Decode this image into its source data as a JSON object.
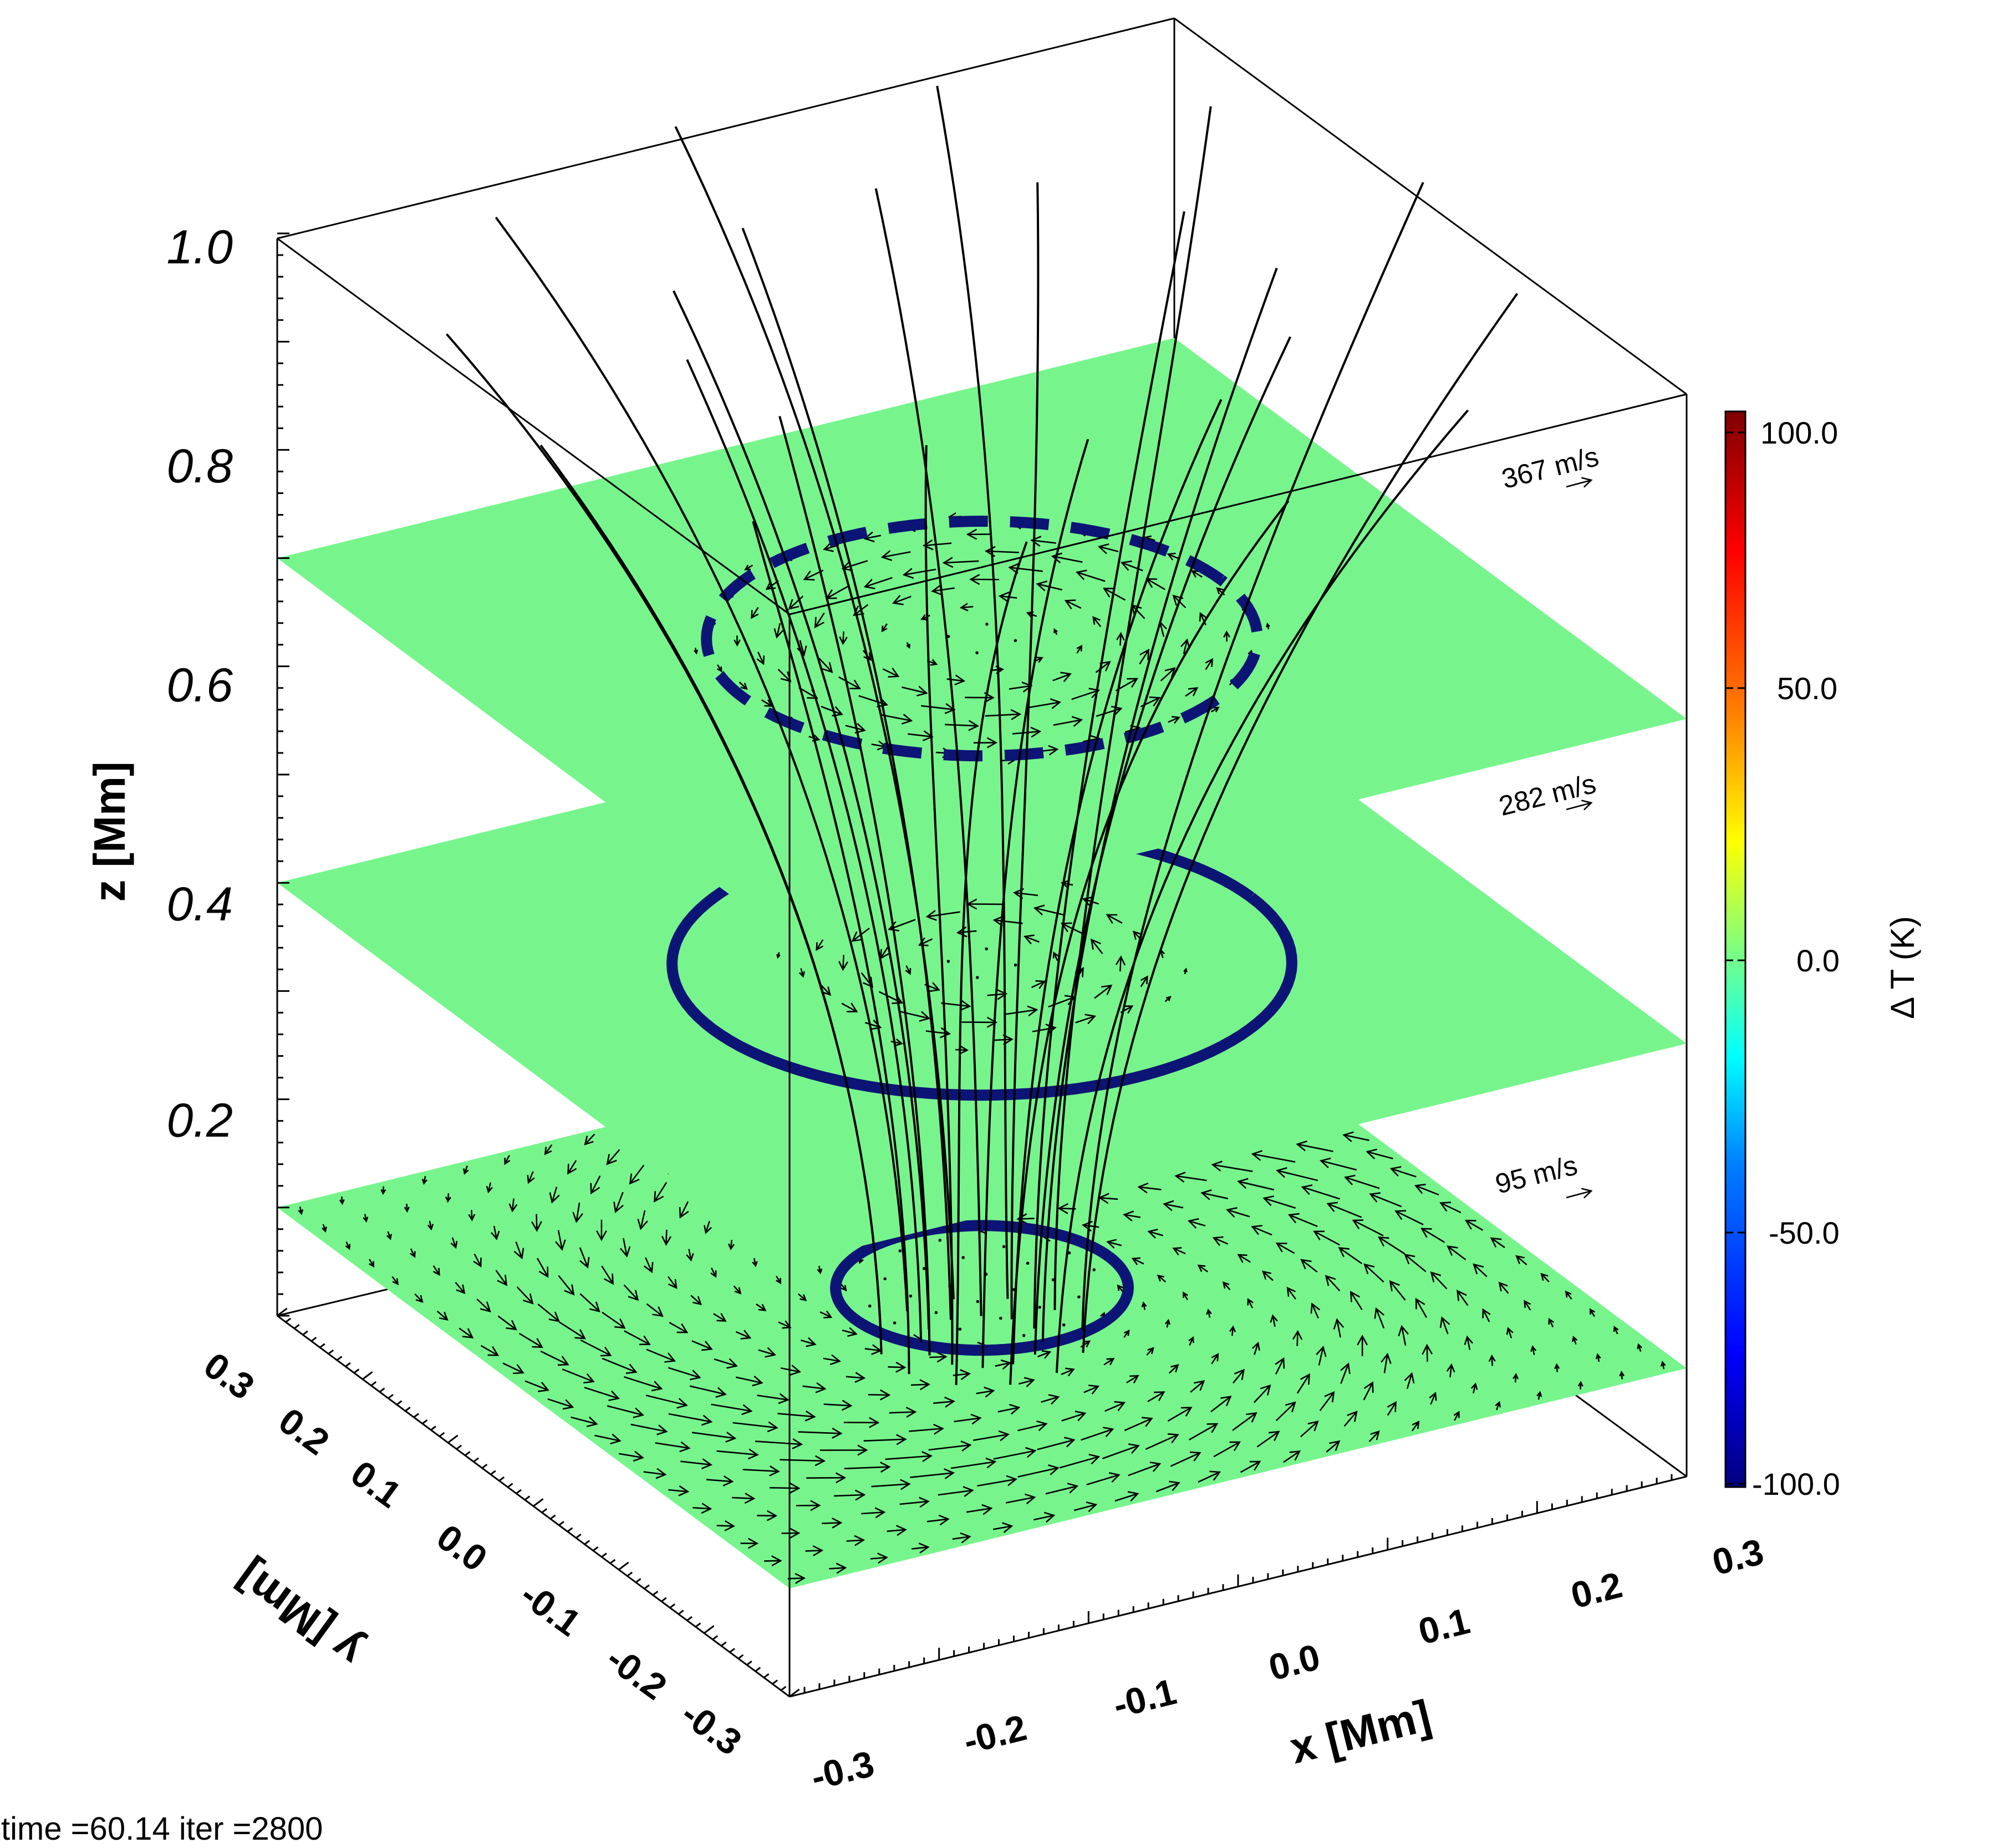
{
  "footer": {
    "text": "time =60.14 iter =2800"
  },
  "chart_data": {
    "type": "3d-slices",
    "title": "",
    "xlabel": "x [Mm]",
    "ylabel": "y [Mm]",
    "zlabel": "z [Mm]",
    "xlim": [
      -0.3,
      0.3
    ],
    "ylim": [
      -0.3,
      0.3
    ],
    "zlim": [
      0.0,
      1.0
    ],
    "xticks": [
      "-0.3",
      "-0.2",
      "-0.1",
      "0.0",
      "0.1",
      "0.2",
      "0.3"
    ],
    "yticks": [
      "-0.3",
      "-0.2",
      "-0.1",
      "0.0",
      "0.1",
      "0.2",
      "0.3"
    ],
    "zticks": [
      "0.2",
      "0.4",
      "0.6",
      "0.8",
      "1.0"
    ],
    "slices": [
      {
        "z": 0.1,
        "reference_speed_label": "95 m/s",
        "ring": "solid"
      },
      {
        "z": 0.4,
        "reference_speed_label": "282 m/s",
        "ring": "solid"
      },
      {
        "z": 0.7,
        "reference_speed_label": "367 m/s",
        "ring": "dashed"
      }
    ],
    "colorbar": {
      "label": "Δ T (K)",
      "range": [
        -100.0,
        100.0
      ],
      "ticks": [
        "100.0",
        "50.0",
        "0.0",
        "-50.0",
        "-100.0"
      ],
      "colormap": [
        "#00007f",
        "#0000ff",
        "#007fff",
        "#00ffff",
        "#7fff7f",
        "#ffff00",
        "#ff7f00",
        "#ff0000",
        "#7f0000"
      ]
    },
    "colors": {
      "slice_fill": "#77f58c",
      "ring": "#0c1476",
      "field_lines": "#000000",
      "arrows": "#000000"
    }
  }
}
